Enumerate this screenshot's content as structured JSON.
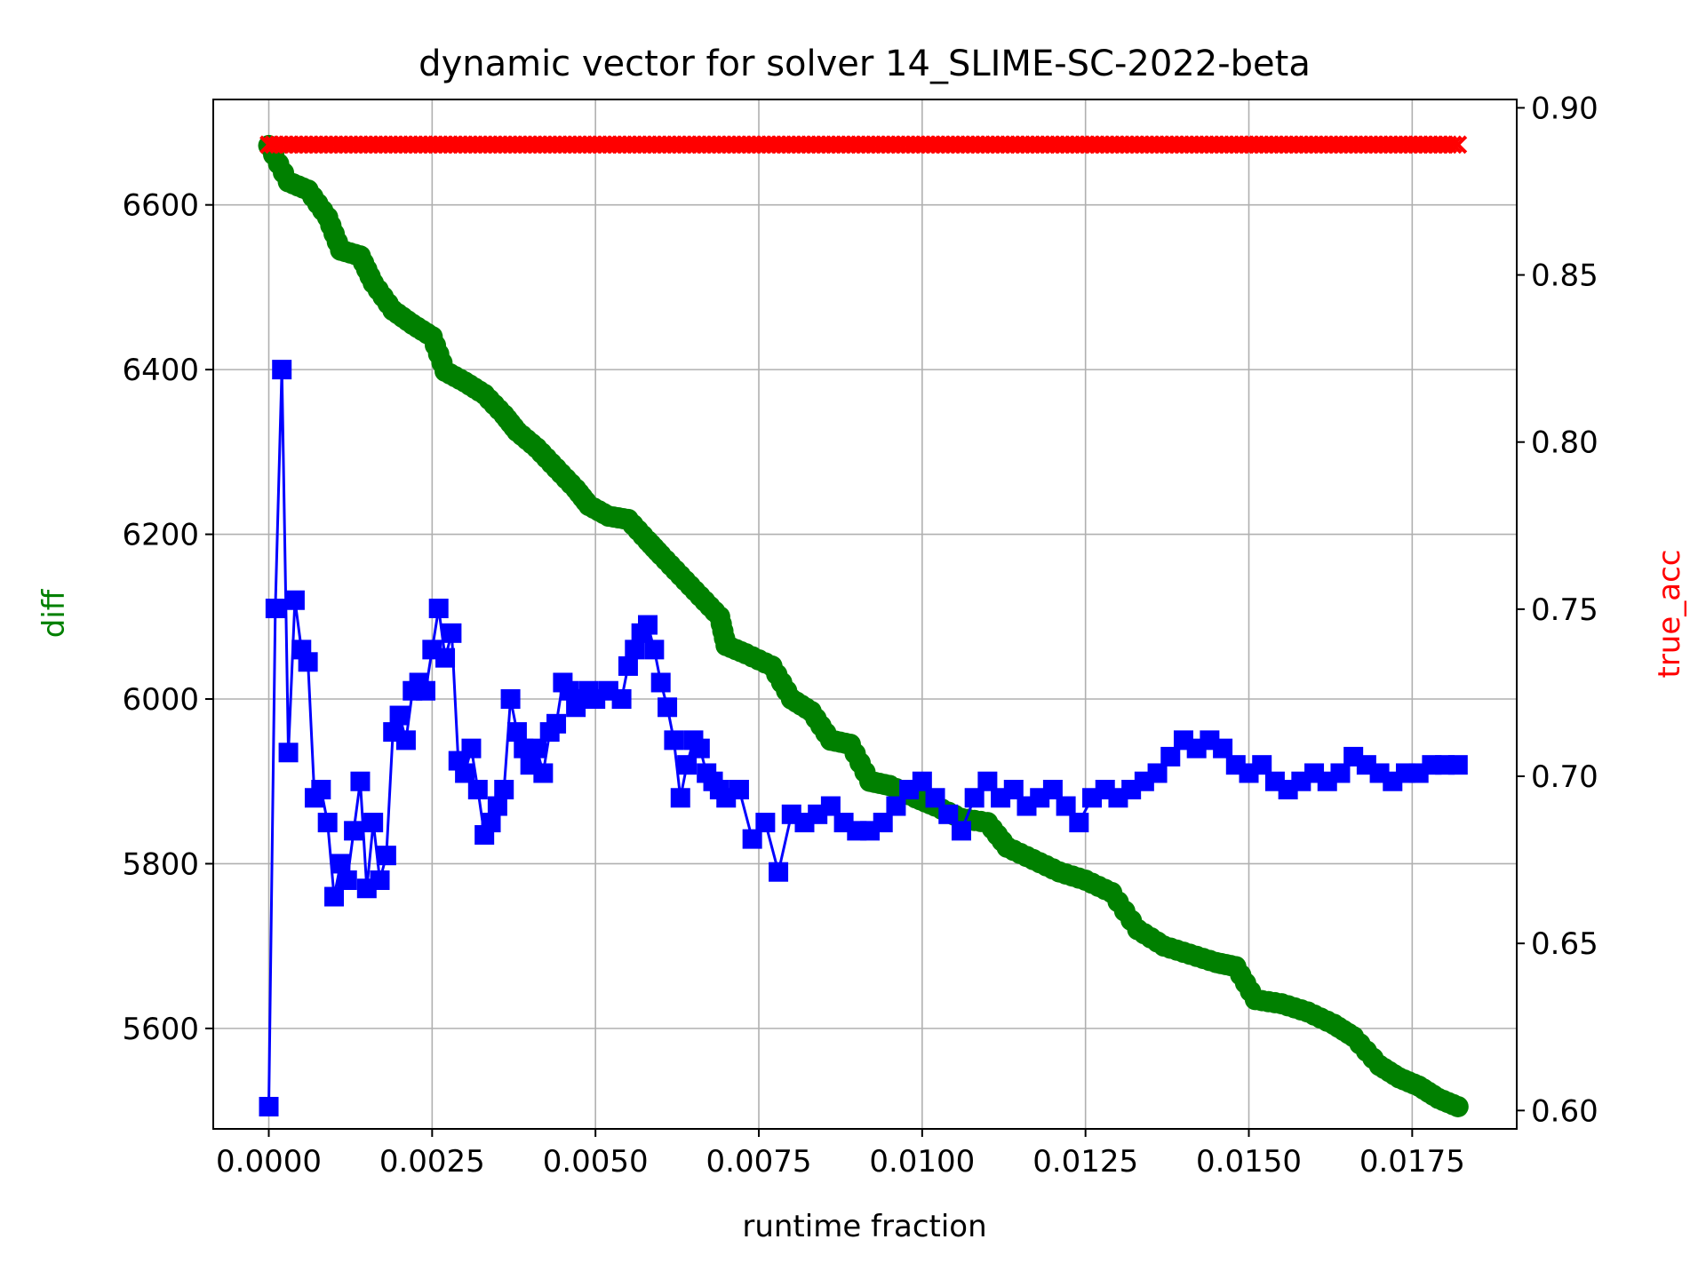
{
  "chart_data": {
    "type": "line",
    "title": "dynamic vector for solver 14_SLIME-SC-2022-beta",
    "xlabel": "runtime fraction",
    "ylabel_left": "diff",
    "ylabel_right": "true_acc",
    "grid": true,
    "xlim": [
      -0.00085,
      0.0191
    ],
    "ylim_left": [
      5478,
      6728
    ],
    "ylim_right": [
      0.5945,
      0.9025
    ],
    "x_ticks": [
      0.0,
      0.0025,
      0.005,
      0.0075,
      0.01,
      0.0125,
      0.015,
      0.0175
    ],
    "x_tick_labels": [
      "0.0000",
      "0.0025",
      "0.0050",
      "0.0075",
      "0.0100",
      "0.0125",
      "0.0150",
      "0.0175"
    ],
    "y_left_ticks": [
      5600,
      5800,
      6000,
      6200,
      6400,
      6600
    ],
    "y_left_tick_labels": [
      "5600",
      "5800",
      "6000",
      "6200",
      "6400",
      "6600"
    ],
    "y_right_ticks": [
      0.6,
      0.65,
      0.7,
      0.75,
      0.8,
      0.85,
      0.9
    ],
    "y_right_tick_labels": [
      "0.60",
      "0.65",
      "0.70",
      "0.75",
      "0.80",
      "0.85",
      "0.90"
    ],
    "colors": {
      "diff": "#008000",
      "blue_series": "#0000ff",
      "true_acc": "#ff0000"
    },
    "series": [
      {
        "axis": "left",
        "marker": "circle",
        "color": "#008000",
        "x": [
          0.0,
          0.0003,
          0.0006,
          0.0009,
          0.0011,
          0.0014,
          0.0016,
          0.0019,
          0.0022,
          0.0025,
          0.0027,
          0.003,
          0.0033,
          0.0036,
          0.0038,
          0.0041,
          0.0044,
          0.0047,
          0.0049,
          0.0052,
          0.0055,
          0.0058,
          0.006,
          0.0063,
          0.0066,
          0.0069,
          0.007,
          0.0073,
          0.0077,
          0.008,
          0.0083,
          0.0086,
          0.0089,
          0.0092,
          0.0095,
          0.0099,
          0.0102,
          0.0106,
          0.011,
          0.0113,
          0.0117,
          0.0121,
          0.0125,
          0.0129,
          0.0133,
          0.0137,
          0.0141,
          0.0145,
          0.0148,
          0.0151,
          0.0155,
          0.0159,
          0.0163,
          0.0166,
          0.017,
          0.0173,
          0.0176,
          0.0179,
          0.0182
        ],
        "y": [
          6672,
          6628,
          6618,
          6585,
          6545,
          6538,
          6505,
          6472,
          6455,
          6440,
          6398,
          6385,
          6370,
          6345,
          6325,
          6305,
          6280,
          6255,
          6235,
          6222,
          6218,
          6192,
          6175,
          6150,
          6125,
          6100,
          6065,
          6055,
          6040,
          6000,
          5985,
          5950,
          5945,
          5900,
          5895,
          5880,
          5870,
          5855,
          5850,
          5820,
          5805,
          5790,
          5780,
          5765,
          5720,
          5700,
          5690,
          5680,
          5675,
          5635,
          5630,
          5620,
          5605,
          5590,
          5555,
          5540,
          5530,
          5515,
          5505
        ]
      },
      {
        "axis": "left",
        "marker": "square",
        "color": "#0000ff",
        "x": [
          0.0,
          0.0001,
          0.0002,
          0.0003,
          0.0004,
          0.0005,
          0.0006,
          0.0007,
          0.0008,
          0.0009,
          0.001,
          0.0011,
          0.0012,
          0.0013,
          0.0014,
          0.0015,
          0.0016,
          0.0017,
          0.0018,
          0.0019,
          0.002,
          0.0021,
          0.0022,
          0.0023,
          0.0024,
          0.0025,
          0.0026,
          0.0027,
          0.0028,
          0.0029,
          0.003,
          0.0031,
          0.0032,
          0.0033,
          0.0034,
          0.0035,
          0.0036,
          0.0037,
          0.0038,
          0.0039,
          0.004,
          0.0041,
          0.0042,
          0.0043,
          0.0044,
          0.0045,
          0.0046,
          0.0047,
          0.0048,
          0.0049,
          0.005,
          0.0052,
          0.0054,
          0.0055,
          0.0056,
          0.0057,
          0.0058,
          0.0059,
          0.006,
          0.0061,
          0.0062,
          0.0063,
          0.0064,
          0.0065,
          0.0066,
          0.0067,
          0.0068,
          0.0069,
          0.007,
          0.0072,
          0.0074,
          0.0076,
          0.0078,
          0.008,
          0.0082,
          0.0084,
          0.0086,
          0.0088,
          0.009,
          0.0092,
          0.0094,
          0.0096,
          0.0098,
          0.01,
          0.0102,
          0.0104,
          0.0106,
          0.0108,
          0.011,
          0.0112,
          0.0114,
          0.0116,
          0.0118,
          0.012,
          0.0122,
          0.0124,
          0.0126,
          0.0128,
          0.013,
          0.0132,
          0.0134,
          0.0136,
          0.0138,
          0.014,
          0.0142,
          0.0144,
          0.0146,
          0.0148,
          0.015,
          0.0152,
          0.0154,
          0.0156,
          0.0158,
          0.016,
          0.0162,
          0.0164,
          0.0166,
          0.0168,
          0.017,
          0.0172,
          0.0174,
          0.0176,
          0.0178,
          0.018,
          0.0182
        ],
        "y": [
          5505,
          6110,
          6400,
          5935,
          6120,
          6060,
          6045,
          5880,
          5890,
          5850,
          5760,
          5800,
          5780,
          5840,
          5900,
          5770,
          5850,
          5780,
          5810,
          5960,
          5980,
          5950,
          6010,
          6020,
          6010,
          6060,
          6110,
          6050,
          6080,
          5925,
          5910,
          5940,
          5890,
          5835,
          5850,
          5870,
          5890,
          6000,
          5960,
          5940,
          5920,
          5940,
          5910,
          5960,
          5970,
          6020,
          6010,
          5990,
          6000,
          6010,
          6000,
          6010,
          6000,
          6040,
          6060,
          6080,
          6090,
          6060,
          6020,
          5990,
          5950,
          5880,
          5920,
          5950,
          5940,
          5910,
          5900,
          5890,
          5880,
          5890,
          5830,
          5850,
          5790,
          5860,
          5850,
          5860,
          5870,
          5850,
          5840,
          5840,
          5850,
          5870,
          5890,
          5900,
          5880,
          5860,
          5840,
          5880,
          5900,
          5880,
          5890,
          5870,
          5880,
          5890,
          5870,
          5850,
          5880,
          5890,
          5880,
          5890,
          5900,
          5910,
          5930,
          5950,
          5940,
          5950,
          5940,
          5920,
          5910,
          5920,
          5900,
          5890,
          5900,
          5910,
          5900,
          5910,
          5930,
          5920,
          5910,
          5900,
          5910,
          5910,
          5920,
          5920,
          5920
        ]
      },
      {
        "axis": "right",
        "marker": "x",
        "color": "#ff0000",
        "x_start": 0.0,
        "x_end": 0.0182,
        "count": 240,
        "y_value": 0.889
      }
    ]
  }
}
